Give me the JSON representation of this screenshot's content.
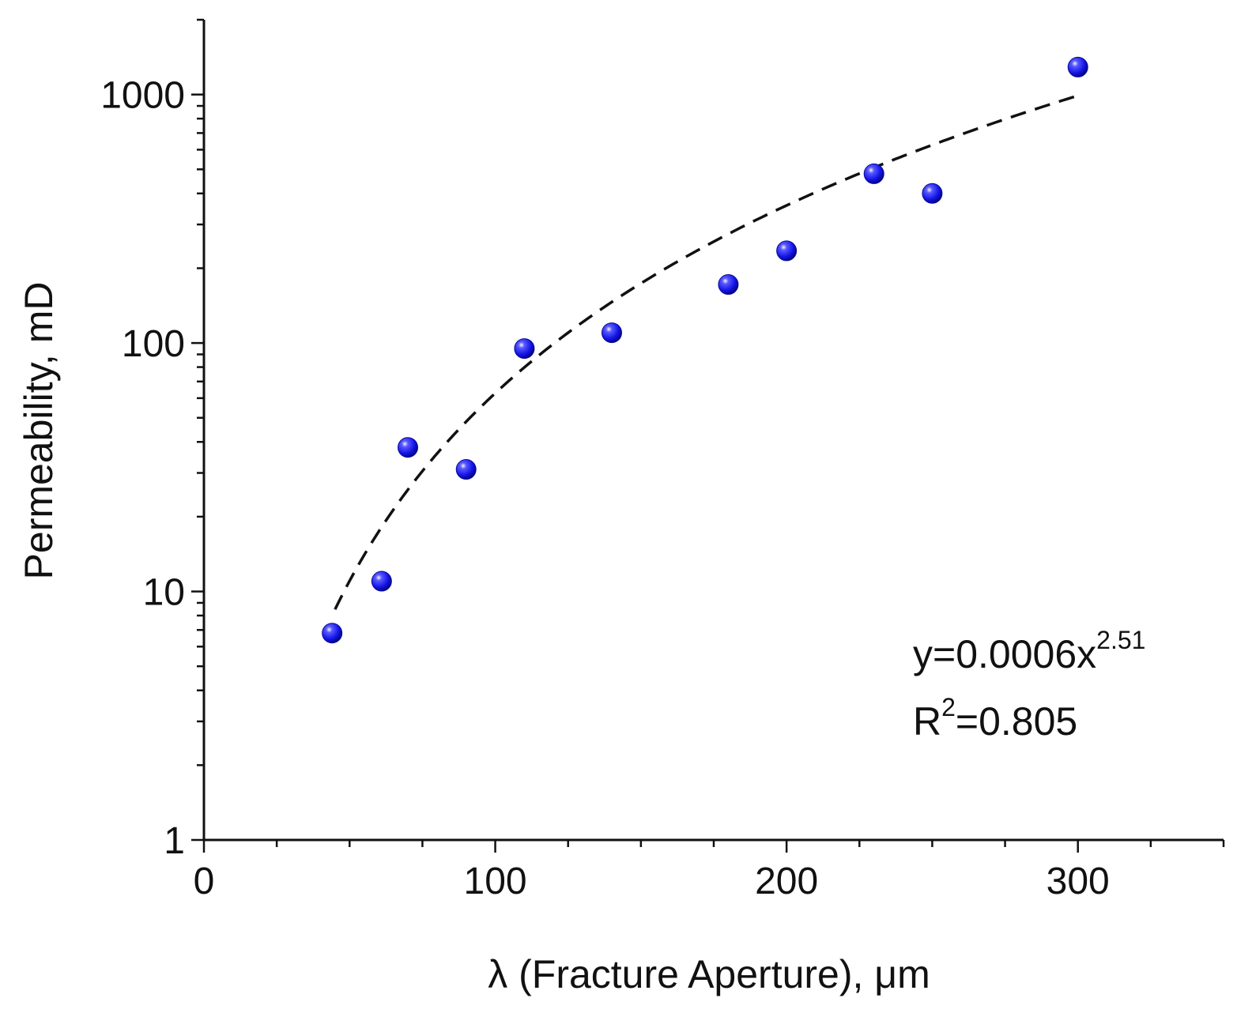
{
  "chart_data": {
    "type": "scatter",
    "xlabel": "λ (Fracture Aperture), μm",
    "ylabel": "Permeability, mD",
    "xlim": [
      0,
      350
    ],
    "ylim": [
      1,
      2000
    ],
    "y_scale": "log",
    "x_ticks": [
      0,
      100,
      200,
      300
    ],
    "x_tick_labels": [
      "0",
      "100",
      "200",
      "300"
    ],
    "y_ticks": [
      1,
      10,
      100,
      1000
    ],
    "y_tick_labels": [
      "1",
      "10",
      "100",
      "1000"
    ],
    "grid": false,
    "series": [
      {
        "marker": "sphere",
        "color": "#1010ee",
        "points": [
          {
            "x": 44,
            "y": 6.8
          },
          {
            "x": 61,
            "y": 11
          },
          {
            "x": 70,
            "y": 38
          },
          {
            "x": 90,
            "y": 31
          },
          {
            "x": 110,
            "y": 95
          },
          {
            "x": 140,
            "y": 110
          },
          {
            "x": 180,
            "y": 172
          },
          {
            "x": 200,
            "y": 235
          },
          {
            "x": 230,
            "y": 480
          },
          {
            "x": 250,
            "y": 400
          },
          {
            "x": 300,
            "y": 1290
          }
        ]
      }
    ],
    "fit": {
      "style": "dashed",
      "color": "#111111",
      "coefficient": 0.0006,
      "exponent": 2.51,
      "x_range": [
        45,
        300
      ]
    },
    "annotation": {
      "equation_text": "y=0.0006x",
      "equation_exponent": "2.51",
      "r2_prefix": "R",
      "r2_sup": "2",
      "r2_text": "=0.805"
    }
  }
}
